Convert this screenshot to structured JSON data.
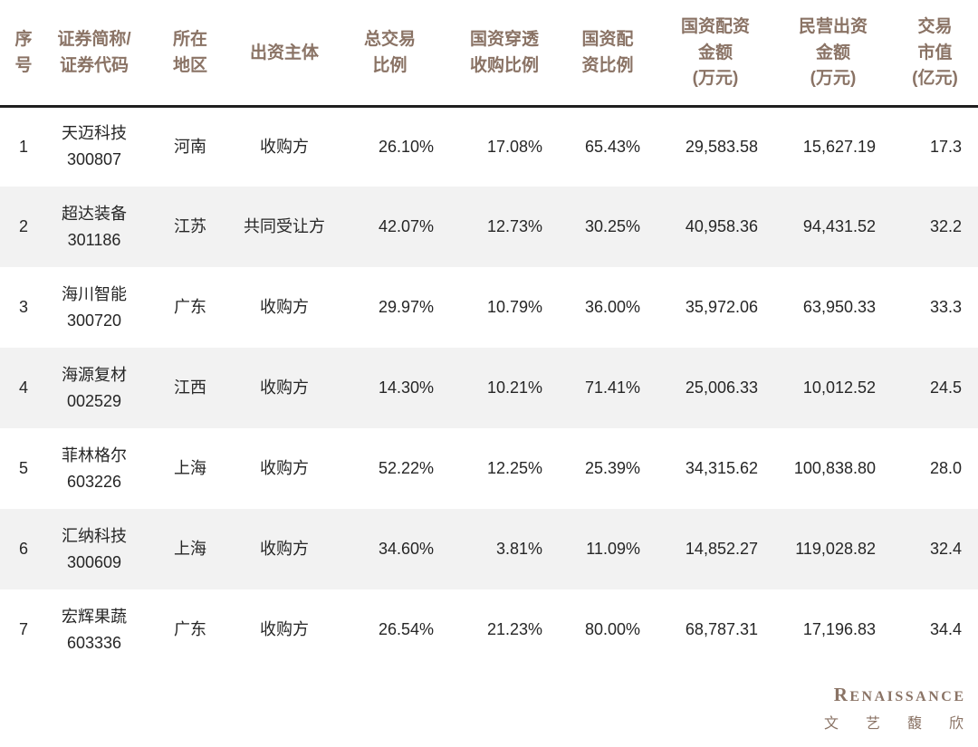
{
  "chart_data": {
    "type": "table",
    "title": "",
    "columns": [
      {
        "key": "no",
        "label": "序号",
        "lines": [
          "序",
          "号"
        ]
      },
      {
        "key": "name_code",
        "label": "证券简称/证券代码",
        "lines": [
          "证券简称/",
          "证券代码"
        ]
      },
      {
        "key": "region",
        "label": "所在地区",
        "lines": [
          "所在",
          "地区"
        ]
      },
      {
        "key": "party",
        "label": "出资主体",
        "lines": [
          "出资主体"
        ]
      },
      {
        "key": "total_ratio",
        "label": "总交易比例",
        "lines": [
          "总交易",
          "比例"
        ]
      },
      {
        "key": "penetration_ratio",
        "label": "国资穿透收购比例",
        "lines": [
          "国资穿透",
          "收购比例"
        ]
      },
      {
        "key": "allocation_ratio",
        "label": "国资配资比例",
        "lines": [
          "国资配",
          "资比例"
        ]
      },
      {
        "key": "state_amount",
        "label": "国资配资金额(万元)",
        "lines": [
          "国资配资",
          "金额",
          "(万元)"
        ]
      },
      {
        "key": "private_amount",
        "label": "民营出资金额(万元)",
        "lines": [
          "民营出资",
          "金额",
          "(万元)"
        ]
      },
      {
        "key": "market_value",
        "label": "交易市值(亿元)",
        "lines": [
          "交易",
          "市值",
          "(亿元)"
        ]
      }
    ],
    "rows": [
      {
        "no": "1",
        "name": "天迈科技",
        "code": "300807",
        "region": "河南",
        "party": "收购方",
        "total_ratio": "26.10%",
        "penetration_ratio": "17.08%",
        "allocation_ratio": "65.43%",
        "state_amount": "29,583.58",
        "private_amount": "15,627.19",
        "market_value": "17.3"
      },
      {
        "no": "2",
        "name": "超达装备",
        "code": "301186",
        "region": "江苏",
        "party": "共同受让方",
        "total_ratio": "42.07%",
        "penetration_ratio": "12.73%",
        "allocation_ratio": "30.25%",
        "state_amount": "40,958.36",
        "private_amount": "94,431.52",
        "market_value": "32.2"
      },
      {
        "no": "3",
        "name": "海川智能",
        "code": "300720",
        "region": "广东",
        "party": "收购方",
        "total_ratio": "29.97%",
        "penetration_ratio": "10.79%",
        "allocation_ratio": "36.00%",
        "state_amount": "35,972.06",
        "private_amount": "63,950.33",
        "market_value": "33.3"
      },
      {
        "no": "4",
        "name": "海源复材",
        "code": "002529",
        "region": "江西",
        "party": "收购方",
        "total_ratio": "14.30%",
        "penetration_ratio": "10.21%",
        "allocation_ratio": "71.41%",
        "state_amount": "25,006.33",
        "private_amount": "10,012.52",
        "market_value": "24.5"
      },
      {
        "no": "5",
        "name": "菲林格尔",
        "code": "603226",
        "region": "上海",
        "party": "收购方",
        "total_ratio": "52.22%",
        "penetration_ratio": "12.25%",
        "allocation_ratio": "25.39%",
        "state_amount": "34,315.62",
        "private_amount": "100,838.80",
        "market_value": "28.0"
      },
      {
        "no": "6",
        "name": "汇纳科技",
        "code": "300609",
        "region": "上海",
        "party": "收购方",
        "total_ratio": "34.60%",
        "penetration_ratio": "3.81%",
        "allocation_ratio": "11.09%",
        "state_amount": "14,852.27",
        "private_amount": "119,028.82",
        "market_value": "32.4"
      },
      {
        "no": "7",
        "name": "宏辉果蔬",
        "code": "603336",
        "region": "广东",
        "party": "收购方",
        "total_ratio": "26.54%",
        "penetration_ratio": "21.23%",
        "allocation_ratio": "80.00%",
        "state_amount": "68,787.31",
        "private_amount": "17,196.83",
        "market_value": "34.4"
      }
    ]
  },
  "footer": {
    "brand_initial": "R",
    "brand_rest": "ENAISSANCE",
    "brand_cn": "文艺馥欣"
  },
  "colors": {
    "header_text": "#8a7365",
    "body_text": "#262626",
    "row_alt_bg": "#f2f2f2",
    "header_rule": "#1f1f1f",
    "brand": "#8a7365"
  }
}
